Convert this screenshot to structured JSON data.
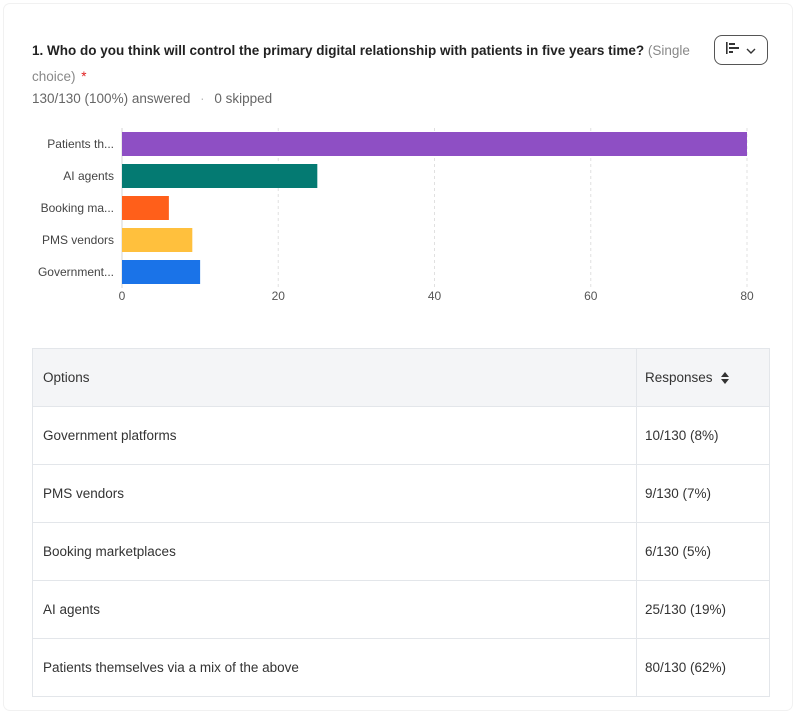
{
  "question": {
    "number_and_text": "1. Who do you think will control the primary digital relationship with patients in five years time?",
    "type_label": "(Single choice)",
    "required_marker": "*",
    "answered": "130/130 (100%) answered",
    "separator": "·",
    "skipped": "0 skipped"
  },
  "chart_type_button": {
    "icon": "bar-chart-horizontal-icon",
    "caret": "chevron-down-icon"
  },
  "chart_data": {
    "type": "bar",
    "orientation": "horizontal",
    "categories": [
      "Patients th...",
      "AI agents",
      "Booking ma...",
      "PMS vendors",
      "Government..."
    ],
    "values": [
      80,
      25,
      6,
      9,
      10
    ],
    "colors": [
      "#8e4fc4",
      "#047a72",
      "#ff5f1a",
      "#ffc03d",
      "#1a73e8"
    ],
    "xticks": [
      0,
      20,
      40,
      60,
      80
    ],
    "xlim": [
      0,
      80
    ],
    "grid": true
  },
  "table": {
    "headers": {
      "options": "Options",
      "responses": "Responses"
    },
    "rows": [
      {
        "option": "Government platforms",
        "response": "10/130 (8%)"
      },
      {
        "option": "PMS vendors",
        "response": "9/130 (7%)"
      },
      {
        "option": "Booking marketplaces",
        "response": "6/130 (5%)"
      },
      {
        "option": "AI agents",
        "response": "25/130 (19%)"
      },
      {
        "option": "Patients themselves via a mix of the above",
        "response": "80/130 (62%)"
      }
    ]
  }
}
